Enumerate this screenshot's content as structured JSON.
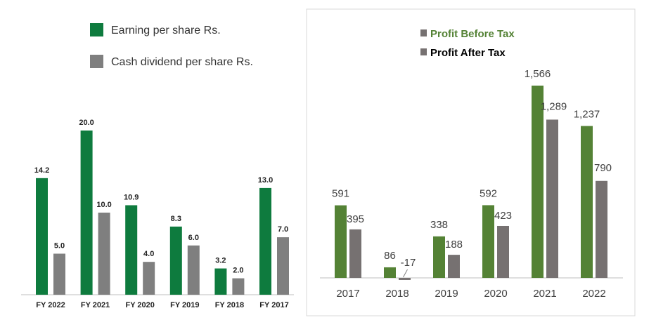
{
  "colors": {
    "left_green": "#0E7B3E",
    "left_gray": "#7F7F7F",
    "right_green": "#548235",
    "right_gray": "#767171",
    "right_legend_green_text": "#548235",
    "panel_border": "#D9D9D9",
    "axis": "#BFBFBF"
  },
  "chart_data": [
    {
      "type": "bar",
      "legend": [
        "Earning per share Rs.",
        "Cash dividend per share Rs."
      ],
      "legend_placement": "top-left",
      "categories": [
        "FY 2022",
        "FY 2021",
        "FY 2020",
        "FY 2019",
        "FY 2018",
        "FY 2017"
      ],
      "series": [
        {
          "name": "Earning per share Rs.",
          "values": [
            14.2,
            20.0,
            10.9,
            8.3,
            3.2,
            13.0
          ],
          "labels": [
            "14.2",
            "20.0",
            "10.9",
            "8.3",
            "3.2",
            "13.0"
          ]
        },
        {
          "name": "Cash dividend per share Rs.",
          "values": [
            5.0,
            10.0,
            4.0,
            6.0,
            2.0,
            7.0
          ],
          "labels": [
            "5.0",
            "10.0",
            "4.0",
            "6.0",
            "2.0",
            "7.0"
          ]
        }
      ],
      "ylim": [
        0,
        20
      ],
      "grid": false
    },
    {
      "type": "bar",
      "legend": [
        "Profit Before Tax",
        "Profit After Tax"
      ],
      "legend_placement": "top-center",
      "categories": [
        "2017",
        "2018",
        "2019",
        "2020",
        "2021",
        "2022"
      ],
      "series": [
        {
          "name": "Profit Before Tax",
          "values": [
            591,
            86,
            338,
            592,
            1566,
            1237
          ],
          "labels": [
            "591",
            "86",
            "338",
            "592",
            "1,566",
            "1,237"
          ]
        },
        {
          "name": "Profit After Tax",
          "values": [
            395,
            -17,
            188,
            423,
            1289,
            790
          ],
          "labels": [
            "395",
            "-17",
            "188",
            "423",
            "1,289",
            "790"
          ]
        }
      ],
      "ylim": [
        -17,
        1566
      ],
      "grid": false
    }
  ]
}
